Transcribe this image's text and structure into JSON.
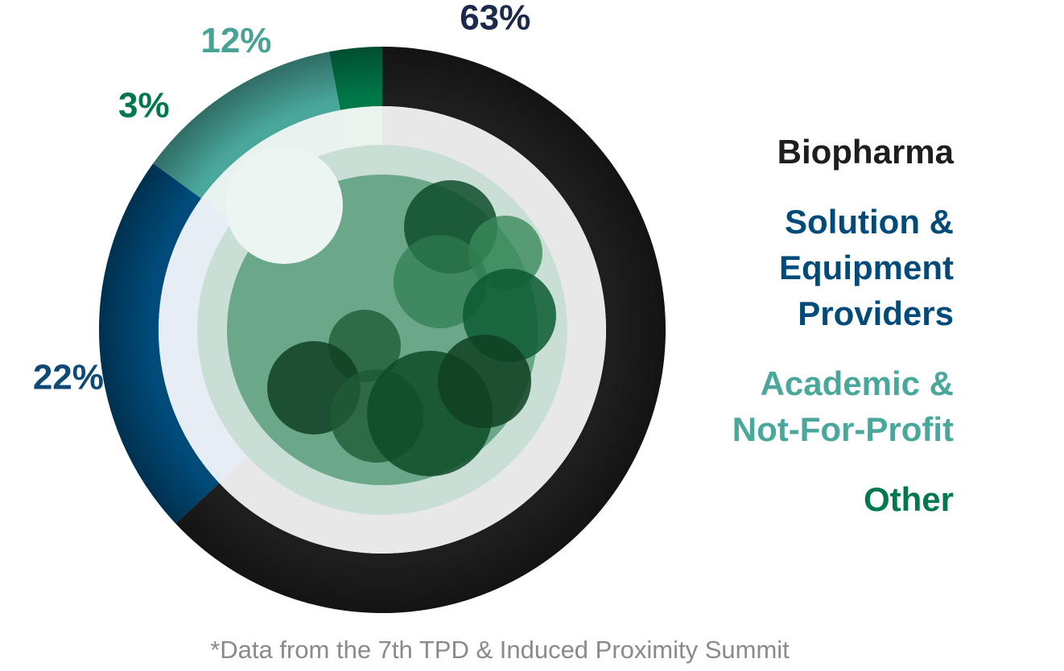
{
  "chart_data": {
    "type": "pie",
    "categories": [
      "Biopharma",
      "Solution & Equipment Providers",
      "Academic & Not-For-Profit",
      "Other"
    ],
    "values": [
      63,
      22,
      12,
      3
    ],
    "value_labels": [
      "63%",
      "22%",
      "12%",
      "3%"
    ],
    "colors": [
      "#1e1e1e",
      "#004b7a",
      "#4aa79c",
      "#00784a"
    ],
    "legend_colors": [
      "#1e1e1e",
      "#004b7a",
      "#4aa79c",
      "#007a4d"
    ],
    "legend_text": [
      "Biopharma",
      "Solution &\nEquipment\nProviders",
      "Academic &\nNot-For-Profit",
      "Other"
    ],
    "legend_placement": "right",
    "label_colors": [
      "#1b2a4c",
      "#0d4a78",
      "#48a296",
      "#00784a"
    ]
  },
  "footnote": "*Data from the 7th TPD & Induced Proximity Summit"
}
